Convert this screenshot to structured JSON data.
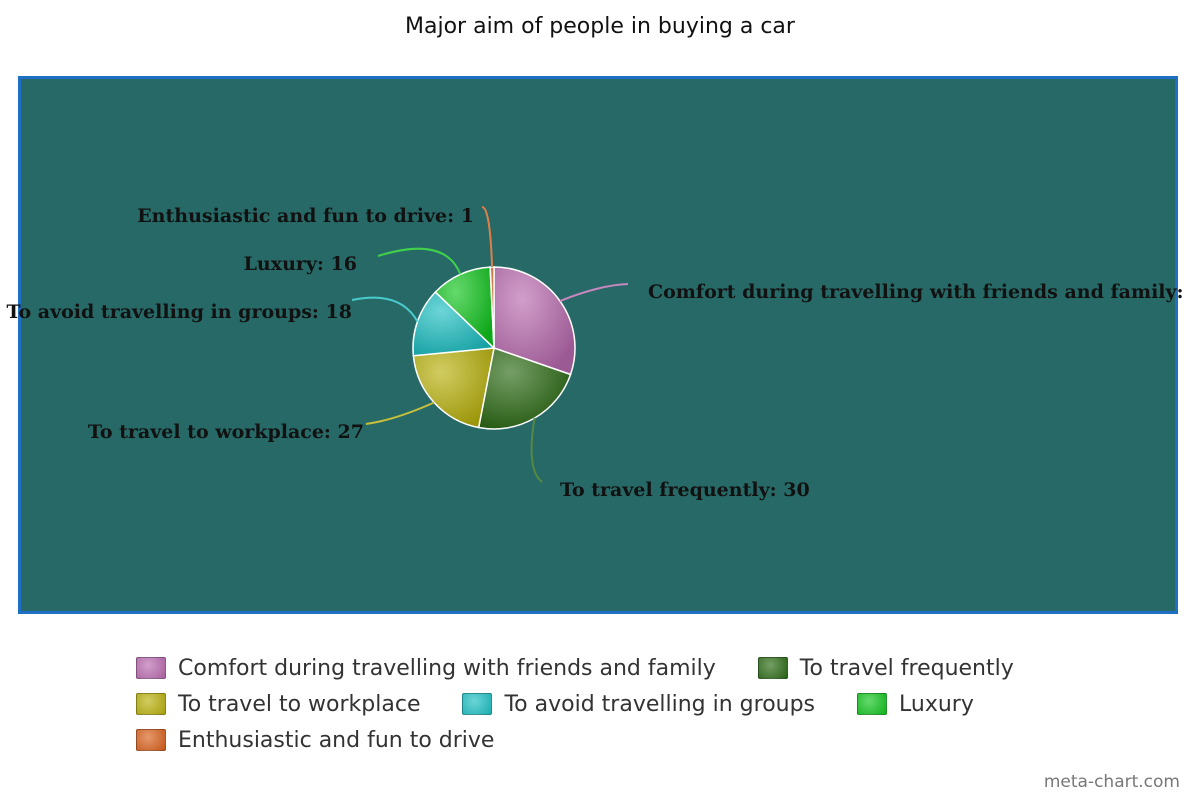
{
  "chart_data": {
    "type": "pie",
    "title": "Major aim of people in buying a car",
    "background_color": "#266966",
    "frame_color": "#1f6fc4",
    "slices": [
      {
        "label": "Comfort during travelling with friends and family",
        "value": 40,
        "color": "#b86aae",
        "data_label": "Comfort during travelling with friends and family:"
      },
      {
        "label": "To travel frequently",
        "value": 30,
        "color": "#2b6a14",
        "data_label": "To travel frequently: 30"
      },
      {
        "label": "To travel to workplace",
        "value": 27,
        "color": "#b8b00c",
        "data_label": "To travel to workplace: 27"
      },
      {
        "label": "To avoid travelling in groups",
        "value": 18,
        "color": "#1dbfc2",
        "data_label": "To avoid travelling in groups: 18"
      },
      {
        "label": "Luxury",
        "value": 16,
        "color": "#12c41e",
        "data_label": "Luxury: 16"
      },
      {
        "label": "Enthusiastic and fun to drive",
        "value": 1,
        "color": "#d8601c",
        "data_label": "Enthusiastic and fun to drive: 1"
      }
    ],
    "legend_position": "bottom"
  },
  "credit": "meta-chart.com"
}
